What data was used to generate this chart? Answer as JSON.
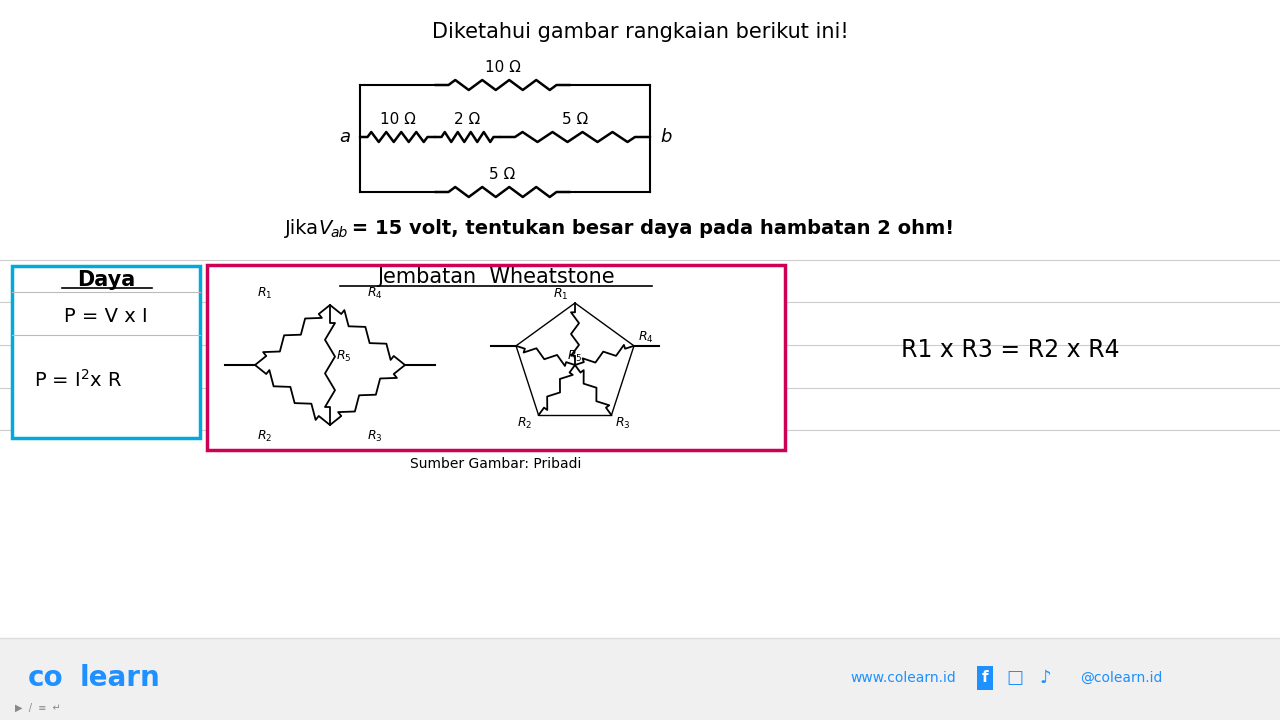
{
  "title": "Diketahui gambar rangkaian berikut ini!",
  "subtitle_part1": "Jika ",
  "subtitle_vab": "V",
  "subtitle_sub": "ab",
  "subtitle_part2": " = 15 volt, tentukan besar daya pada hambatan 2 ohm!",
  "bg_color": "#f0f0f0",
  "white": "#ffffff",
  "circuit": {
    "r_top": "10 Ω",
    "r1": "10 Ω",
    "r2": "2 Ω",
    "r3": "5 Ω",
    "r_bot": "5 Ω",
    "label_a": "a",
    "label_b": "b"
  },
  "daya_box": {
    "title": "Daya",
    "line1": "P = V x I",
    "border_color": "#00aadd"
  },
  "wheatstone_box": {
    "title": "Jembatan  Wheatstone",
    "border_color": "#cc0055"
  },
  "formula": "R1 x R3 = R2 x R4",
  "source": "Sumber Gambar: Pribadi",
  "footer_brand1": "co",
  "footer_brand2": "learn",
  "footer_website": "www.colearn.id",
  "footer_social": "@colearn.id",
  "brand_color": "#1e90ff"
}
